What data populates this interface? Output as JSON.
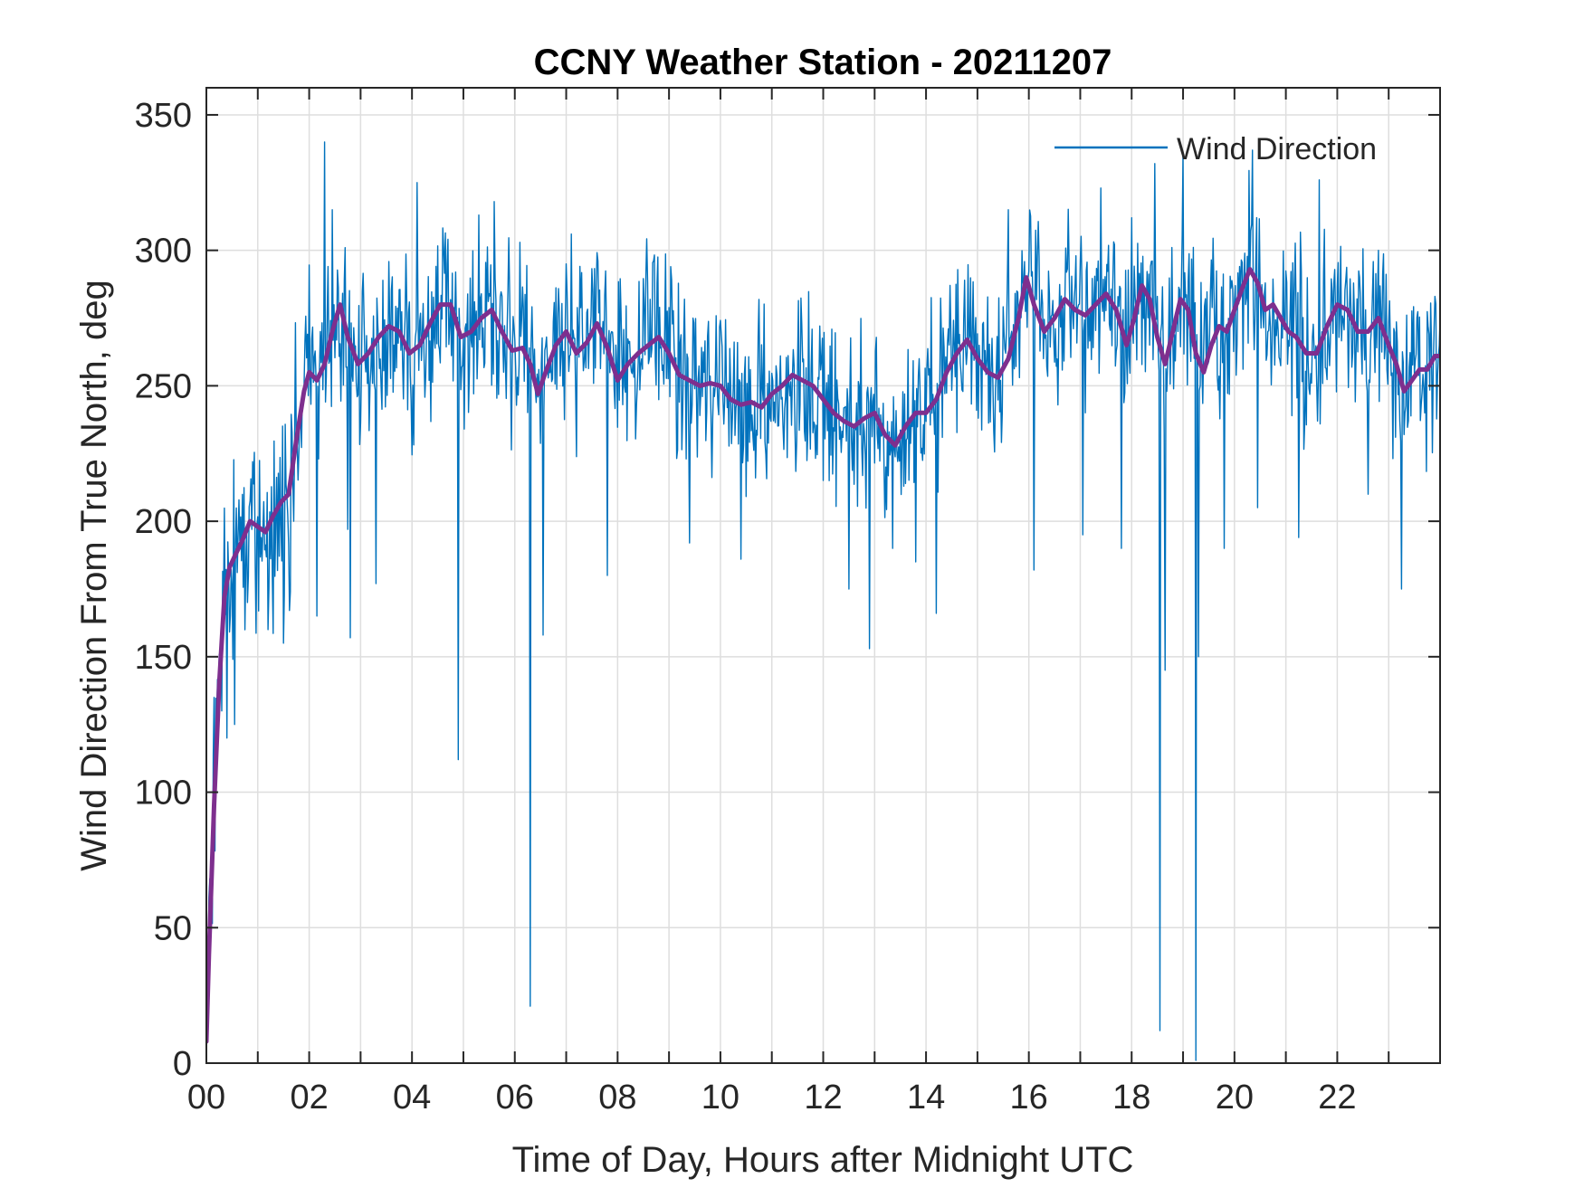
{
  "chart_data": {
    "type": "line",
    "title": "CCNY Weather Station - 20211207",
    "xlabel": "Time of Day, Hours after Midnight UTC",
    "ylabel": "Wind Direction From True North, deg",
    "xlim": [
      0,
      24
    ],
    "ylim": [
      0,
      360
    ],
    "grid": true,
    "legend_position": "top-right",
    "x_ticks": [
      0,
      2,
      4,
      6,
      8,
      10,
      12,
      14,
      16,
      18,
      20,
      22
    ],
    "x_tick_labels": [
      "00",
      "02",
      "04",
      "06",
      "08",
      "10",
      "12",
      "14",
      "16",
      "18",
      "20",
      "22"
    ],
    "x_minor_ticks": [
      1,
      3,
      5,
      7,
      9,
      11,
      13,
      15,
      17,
      19,
      21,
      23
    ],
    "y_ticks": [
      0,
      50,
      100,
      150,
      200,
      250,
      300,
      350
    ],
    "y_tick_labels": [
      "0",
      "50",
      "100",
      "150",
      "200",
      "250",
      "300",
      "350"
    ],
    "series": [
      {
        "name": "Wind Direction",
        "color": "#0072BD",
        "kind": "raw",
        "in_legend": true,
        "noise_spread": 28,
        "spikes": [
          [
            0.15,
            135
          ],
          [
            0.3,
            130
          ],
          [
            0.4,
            120
          ],
          [
            0.55,
            125
          ],
          [
            0.8,
            170
          ],
          [
            1.2,
            160
          ],
          [
            1.5,
            155
          ],
          [
            2.15,
            165
          ],
          [
            2.3,
            340
          ],
          [
            2.45,
            315
          ],
          [
            2.75,
            197
          ],
          [
            2.8,
            157
          ],
          [
            3.3,
            328
          ],
          [
            3.3,
            177
          ],
          [
            4.1,
            325
          ],
          [
            4.9,
            112
          ],
          [
            5.3,
            313
          ],
          [
            5.6,
            318
          ],
          [
            6.3,
            21
          ],
          [
            6.55,
            158
          ],
          [
            7.1,
            306
          ],
          [
            7.8,
            180
          ],
          [
            9.4,
            192
          ],
          [
            10.4,
            186
          ],
          [
            12.5,
            175
          ],
          [
            12.9,
            153
          ],
          [
            13.35,
            190
          ],
          [
            13.8,
            185
          ],
          [
            14.2,
            166
          ],
          [
            15.6,
            315
          ],
          [
            16.1,
            182
          ],
          [
            17.05,
            195
          ],
          [
            17.4,
            323
          ],
          [
            17.8,
            190
          ],
          [
            18.0,
            312
          ],
          [
            18.45,
            332
          ],
          [
            18.55,
            12
          ],
          [
            18.65,
            145
          ],
          [
            19.0,
            336
          ],
          [
            19.25,
            1
          ],
          [
            19.3,
            150
          ],
          [
            19.8,
            190
          ],
          [
            20.35,
            337
          ],
          [
            20.45,
            205
          ],
          [
            21.25,
            194
          ],
          [
            21.65,
            326
          ],
          [
            22.6,
            210
          ],
          [
            22.8,
            300
          ],
          [
            23.25,
            175
          ],
          [
            23.3,
            232
          ],
          [
            23.7,
            240
          ],
          [
            23.9,
            283
          ]
        ]
      },
      {
        "name": "Smoothed",
        "color": "#7E2F8E",
        "kind": "smooth",
        "in_legend": false,
        "x": [
          0.0,
          0.05,
          0.15,
          0.25,
          0.35,
          0.45,
          0.55,
          0.7,
          0.85,
          1.0,
          1.15,
          1.3,
          1.45,
          1.6,
          1.75,
          1.9,
          2.0,
          2.15,
          2.3,
          2.45,
          2.6,
          2.75,
          2.95,
          3.15,
          3.35,
          3.55,
          3.75,
          3.95,
          4.15,
          4.35,
          4.55,
          4.75,
          4.95,
          5.15,
          5.35,
          5.55,
          5.75,
          5.95,
          6.15,
          6.3,
          6.45,
          6.6,
          6.8,
          7.0,
          7.2,
          7.4,
          7.6,
          7.8,
          8.0,
          8.2,
          8.4,
          8.6,
          8.8,
          9.0,
          9.2,
          9.4,
          9.6,
          9.8,
          10.0,
          10.2,
          10.4,
          10.6,
          10.8,
          11.0,
          11.2,
          11.4,
          11.6,
          11.8,
          12.0,
          12.2,
          12.4,
          12.6,
          12.8,
          13.0,
          13.2,
          13.4,
          13.6,
          13.8,
          14.0,
          14.2,
          14.4,
          14.6,
          14.8,
          15.0,
          15.2,
          15.4,
          15.6,
          15.8,
          15.95,
          16.1,
          16.3,
          16.5,
          16.7,
          16.9,
          17.1,
          17.3,
          17.5,
          17.7,
          17.9,
          18.05,
          18.2,
          18.35,
          18.5,
          18.65,
          18.8,
          18.95,
          19.1,
          19.25,
          19.4,
          19.55,
          19.7,
          19.85,
          20.0,
          20.15,
          20.3,
          20.45,
          20.6,
          20.75,
          20.9,
          21.05,
          21.2,
          21.4,
          21.6,
          21.8,
          22.0,
          22.2,
          22.4,
          22.6,
          22.8,
          23.0,
          23.15,
          23.3,
          23.45,
          23.6,
          23.75,
          23.9,
          24.0
        ],
        "y": [
          8,
          40,
          95,
          140,
          172,
          183,
          187,
          193,
          200,
          198,
          196,
          202,
          207,
          210,
          230,
          248,
          255,
          252,
          258,
          270,
          280,
          268,
          258,
          262,
          268,
          272,
          270,
          262,
          265,
          273,
          280,
          280,
          268,
          270,
          275,
          278,
          270,
          263,
          264,
          258,
          247,
          255,
          265,
          270,
          262,
          266,
          273,
          264,
          252,
          258,
          262,
          265,
          268,
          262,
          254,
          252,
          250,
          251,
          250,
          245,
          243,
          244,
          242,
          247,
          250,
          254,
          252,
          250,
          245,
          240,
          237,
          235,
          238,
          240,
          232,
          228,
          235,
          240,
          240,
          245,
          255,
          262,
          267,
          260,
          255,
          253,
          260,
          275,
          290,
          280,
          270,
          275,
          282,
          278,
          276,
          280,
          284,
          278,
          265,
          275,
          287,
          282,
          268,
          258,
          270,
          282,
          278,
          262,
          255,
          265,
          272,
          270,
          278,
          286,
          293,
          288,
          278,
          280,
          275,
          270,
          268,
          262,
          262,
          272,
          280,
          278,
          270,
          270,
          275,
          265,
          258,
          248,
          252,
          256,
          256,
          261,
          261
        ]
      }
    ]
  }
}
